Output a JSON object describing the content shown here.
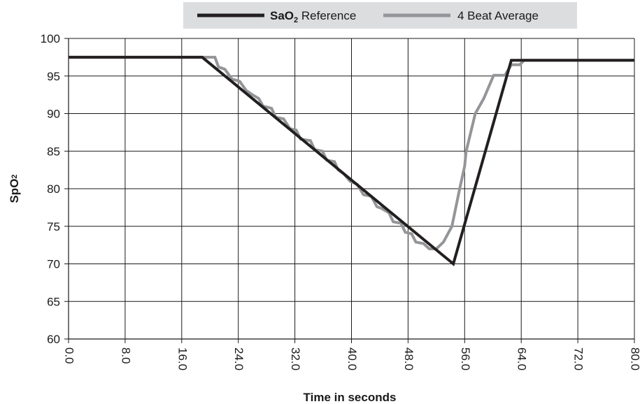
{
  "chart_data": {
    "type": "line",
    "xlabel": "Time in seconds",
    "ylabel_main": "SpO",
    "ylabel_sub": "2",
    "xlim": [
      0,
      80
    ],
    "ylim": [
      60,
      100
    ],
    "x_ticks": [
      "0.0",
      "8.0",
      "16.0",
      "24.0",
      "32.0",
      "40.0",
      "48.0",
      "56.0",
      "64.0",
      "72.0",
      "80.0"
    ],
    "y_ticks": [
      "100",
      "95",
      "90",
      "85",
      "80",
      "75",
      "70",
      "65",
      "60"
    ],
    "grid": true,
    "legend_position": "top",
    "legend": {
      "item1_main": "SaO",
      "item1_sub": "2",
      "item1_rest": " Reference",
      "item2": "4 Beat Average"
    },
    "series": [
      {
        "name": "SaO2 Reference",
        "color": "#231f20",
        "points": [
          [
            0,
            97.5
          ],
          [
            18.9,
            97.5
          ],
          [
            54.4,
            70
          ],
          [
            62.6,
            97.1
          ],
          [
            80,
            97.1
          ]
        ]
      },
      {
        "name": "4 Beat Average",
        "color": "#939598",
        "points": [
          [
            0,
            97.5
          ],
          [
            20.7,
            97.5
          ],
          [
            21.2,
            96.2
          ],
          [
            22.1,
            95.9
          ],
          [
            23.1,
            94.6
          ],
          [
            24.2,
            94.3
          ],
          [
            25.1,
            93.1
          ],
          [
            26.0,
            92.5
          ],
          [
            26.9,
            92.0
          ],
          [
            27.5,
            91.0
          ],
          [
            28.7,
            90.7
          ],
          [
            29.3,
            89.5
          ],
          [
            30.4,
            89.3
          ],
          [
            31.3,
            88.0
          ],
          [
            32.2,
            87.8
          ],
          [
            32.8,
            86.6
          ],
          [
            34.2,
            86.4
          ],
          [
            34.8,
            85.2
          ],
          [
            35.9,
            85.0
          ],
          [
            36.5,
            83.8
          ],
          [
            37.6,
            83.6
          ],
          [
            38.1,
            82.5
          ],
          [
            38.9,
            82.0
          ],
          [
            39.8,
            81.0
          ],
          [
            40.8,
            80.6
          ],
          [
            41.7,
            79.2
          ],
          [
            42.8,
            79.0
          ],
          [
            43.6,
            77.6
          ],
          [
            44.2,
            77.4
          ],
          [
            45.3,
            76.8
          ],
          [
            45.9,
            75.6
          ],
          [
            47.0,
            75.4
          ],
          [
            47.6,
            74.2
          ],
          [
            48.5,
            74.0
          ],
          [
            49.1,
            72.9
          ],
          [
            50.2,
            72.7
          ],
          [
            51.0,
            72.0
          ],
          [
            52.0,
            72.0
          ],
          [
            53.0,
            72.9
          ],
          [
            54.2,
            75.0
          ],
          [
            55.3,
            80.0
          ],
          [
            56.0,
            83.0
          ],
          [
            56.2,
            84.9
          ],
          [
            57.5,
            90.0
          ],
          [
            58.7,
            92.0
          ],
          [
            60.1,
            95.1
          ],
          [
            61.7,
            95.1
          ],
          [
            62.6,
            96.5
          ],
          [
            63.8,
            96.5
          ],
          [
            64.4,
            97.1
          ],
          [
            80,
            97.1
          ]
        ]
      }
    ]
  }
}
